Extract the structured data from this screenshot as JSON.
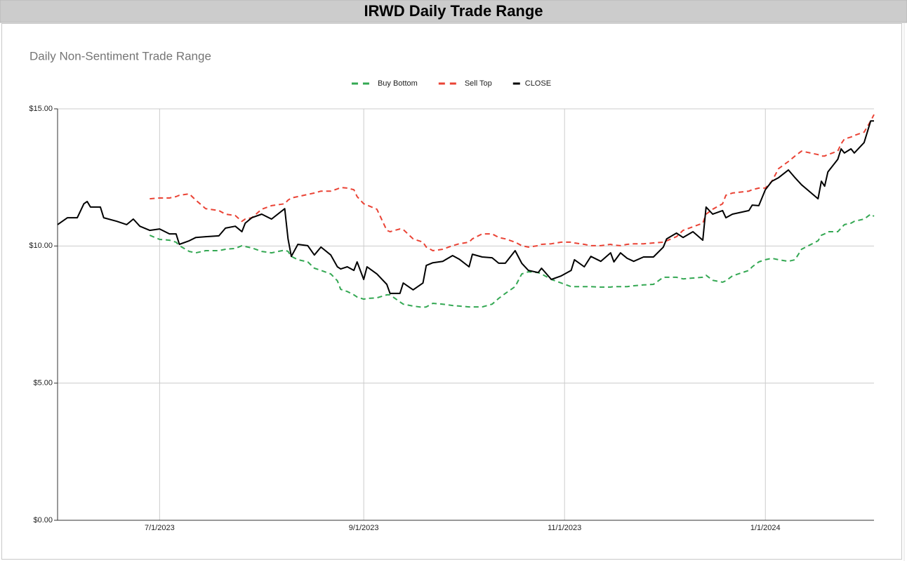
{
  "chart_data": {
    "type": "line",
    "title": "IRWD Daily Trade Range",
    "subtitle": "Daily Non-Sentiment Trade Range",
    "legend": "top",
    "grid": true,
    "x": [
      "2023-05-31",
      "2023-06-03",
      "2023-06-06",
      "2023-06-08",
      "2023-06-09",
      "2023-06-10",
      "2023-06-13",
      "2023-06-14",
      "2023-06-18",
      "2023-06-21",
      "2023-06-23",
      "2023-06-25",
      "2023-06-28",
      "2023-07-01",
      "2023-07-04",
      "2023-07-06",
      "2023-07-07",
      "2023-07-10",
      "2023-07-12",
      "2023-07-15",
      "2023-07-19",
      "2023-07-21",
      "2023-07-24",
      "2023-07-26",
      "2023-07-27",
      "2023-07-29",
      "2023-08-01",
      "2023-08-04",
      "2023-08-08",
      "2023-08-09",
      "2023-08-10",
      "2023-08-12",
      "2023-08-15",
      "2023-08-17",
      "2023-08-19",
      "2023-08-22",
      "2023-08-24",
      "2023-08-25",
      "2023-08-27",
      "2023-08-29",
      "2023-08-30",
      "2023-09-01",
      "2023-09-02",
      "2023-09-05",
      "2023-09-08",
      "2023-09-09",
      "2023-09-12",
      "2023-09-13",
      "2023-09-16",
      "2023-09-19",
      "2023-09-20",
      "2023-09-22",
      "2023-09-25",
      "2023-09-28",
      "2023-09-30",
      "2023-10-03",
      "2023-10-04",
      "2023-10-07",
      "2023-10-10",
      "2023-10-12",
      "2023-10-14",
      "2023-10-17",
      "2023-10-19",
      "2023-10-21",
      "2023-10-24",
      "2023-10-25",
      "2023-10-28",
      "2023-10-31",
      "2023-11-03",
      "2023-11-04",
      "2023-11-07",
      "2023-11-09",
      "2023-11-12",
      "2023-11-15",
      "2023-11-16",
      "2023-11-18",
      "2023-11-20",
      "2023-11-22",
      "2023-11-25",
      "2023-11-28",
      "2023-12-01",
      "2023-12-02",
      "2023-12-05",
      "2023-12-07",
      "2023-12-10",
      "2023-12-13",
      "2023-12-14",
      "2023-12-16",
      "2023-12-19",
      "2023-12-20",
      "2023-12-22",
      "2023-12-27",
      "2023-12-28",
      "2023-12-30",
      "2024-01-01",
      "2024-01-03",
      "2024-01-05",
      "2024-01-08",
      "2024-01-10",
      "2024-01-12",
      "2024-01-17",
      "2024-01-18",
      "2024-01-19",
      "2024-01-20",
      "2024-01-23",
      "2024-01-24",
      "2024-01-25",
      "2024-01-27",
      "2024-01-28",
      "2024-01-31",
      "2024-02-02",
      "2024-02-03"
    ],
    "series": [
      {
        "name": "Buy Bottom",
        "color": "#34a853",
        "line_style": "dashed",
        "values": [
          null,
          null,
          null,
          null,
          null,
          null,
          null,
          null,
          null,
          null,
          null,
          null,
          10.39,
          10.24,
          10.21,
          10.14,
          10.01,
          9.8,
          9.75,
          9.83,
          9.83,
          9.88,
          9.91,
          10.01,
          9.98,
          9.93,
          9.8,
          9.75,
          9.85,
          9.8,
          9.62,
          9.5,
          9.42,
          9.19,
          9.11,
          8.98,
          8.73,
          8.42,
          8.34,
          8.22,
          8.14,
          8.06,
          8.09,
          8.11,
          8.22,
          8.22,
          7.96,
          7.88,
          7.81,
          7.76,
          7.78,
          7.91,
          7.88,
          7.83,
          7.81,
          7.78,
          7.78,
          7.78,
          7.88,
          8.09,
          8.27,
          8.52,
          8.98,
          9.06,
          9.03,
          8.98,
          8.78,
          8.65,
          8.52,
          8.52,
          8.52,
          8.52,
          8.5,
          8.5,
          8.52,
          8.52,
          8.52,
          8.55,
          8.58,
          8.6,
          8.86,
          8.86,
          8.86,
          8.8,
          8.83,
          8.86,
          8.93,
          8.75,
          8.68,
          8.73,
          8.91,
          9.11,
          9.24,
          9.42,
          9.5,
          9.55,
          9.5,
          9.44,
          9.5,
          9.88,
          10.19,
          10.39,
          10.44,
          10.52,
          10.52,
          10.65,
          10.78,
          10.83,
          10.9,
          10.98,
          11.16,
          11.08
        ]
      },
      {
        "name": "Sell Top",
        "color": "#ea4335",
        "line_style": "dashed",
        "values": [
          null,
          null,
          null,
          null,
          null,
          null,
          null,
          null,
          null,
          null,
          null,
          null,
          11.72,
          11.75,
          11.75,
          11.8,
          11.85,
          11.9,
          11.67,
          11.36,
          11.29,
          11.16,
          11.11,
          10.9,
          10.98,
          11.03,
          11.34,
          11.47,
          11.54,
          11.67,
          11.75,
          11.8,
          11.88,
          11.93,
          12.0,
          12.0,
          12.08,
          12.13,
          12.11,
          12.05,
          11.8,
          11.54,
          11.49,
          11.34,
          10.57,
          10.52,
          10.62,
          10.6,
          10.26,
          10.14,
          9.96,
          9.83,
          9.88,
          10.01,
          10.08,
          10.14,
          10.26,
          10.44,
          10.44,
          10.31,
          10.26,
          10.14,
          10.01,
          9.96,
          10.01,
          10.06,
          10.08,
          10.14,
          10.14,
          10.11,
          10.06,
          10.01,
          10.01,
          10.06,
          10.03,
          10.01,
          10.06,
          10.08,
          10.08,
          10.11,
          10.14,
          10.19,
          10.34,
          10.57,
          10.7,
          10.83,
          11.16,
          11.34,
          11.54,
          11.85,
          11.93,
          12.0,
          12.05,
          12.11,
          12.11,
          12.36,
          12.82,
          13.08,
          13.28,
          13.46,
          13.33,
          13.28,
          13.28,
          13.33,
          13.46,
          13.72,
          13.9,
          13.97,
          14.03,
          14.15,
          14.56,
          14.79
        ]
      },
      {
        "name": "CLOSE",
        "color": "#000000",
        "line_style": "solid",
        "values": [
          10.78,
          11.03,
          11.03,
          11.54,
          11.62,
          11.42,
          11.42,
          11.03,
          10.9,
          10.78,
          10.98,
          10.72,
          10.57,
          10.62,
          10.44,
          10.44,
          10.06,
          10.19,
          10.31,
          10.34,
          10.37,
          10.65,
          10.72,
          10.52,
          10.83,
          11.03,
          11.16,
          10.98,
          11.36,
          10.26,
          9.62,
          10.06,
          10.01,
          9.67,
          9.96,
          9.67,
          9.24,
          9.16,
          9.24,
          9.11,
          9.42,
          8.78,
          9.24,
          8.98,
          8.6,
          8.27,
          8.27,
          8.65,
          8.4,
          8.65,
          9.29,
          9.39,
          9.44,
          9.65,
          9.52,
          9.24,
          9.7,
          9.6,
          9.57,
          9.37,
          9.37,
          9.83,
          9.37,
          9.11,
          9.03,
          9.19,
          8.78,
          8.91,
          9.11,
          9.5,
          9.24,
          9.62,
          9.44,
          9.75,
          9.42,
          9.75,
          9.55,
          9.44,
          9.6,
          9.6,
          9.96,
          10.26,
          10.47,
          10.31,
          10.52,
          10.21,
          11.42,
          11.16,
          11.29,
          11.03,
          11.16,
          11.29,
          11.49,
          11.47,
          12.05,
          12.36,
          12.49,
          12.77,
          12.49,
          12.23,
          11.72,
          12.36,
          12.18,
          12.7,
          13.16,
          13.54,
          13.39,
          13.54,
          13.39,
          13.77,
          14.56,
          14.56
        ]
      }
    ],
    "xlim": [
      "2023-05-31",
      "2024-02-03"
    ],
    "xticks": [
      {
        "value": "2023-07-01",
        "label": "7/1/2023"
      },
      {
        "value": "2023-09-01",
        "label": "9/1/2023"
      },
      {
        "value": "2023-11-01",
        "label": "11/1/2023"
      },
      {
        "value": "2024-01-01",
        "label": "1/1/2024"
      }
    ],
    "ylim": [
      0,
      15
    ],
    "yticks": [
      {
        "value": 0,
        "label": "$0.00"
      },
      {
        "value": 5,
        "label": "$5.00"
      },
      {
        "value": 10,
        "label": "$10.00"
      },
      {
        "value": 15,
        "label": "$15.00"
      }
    ]
  }
}
